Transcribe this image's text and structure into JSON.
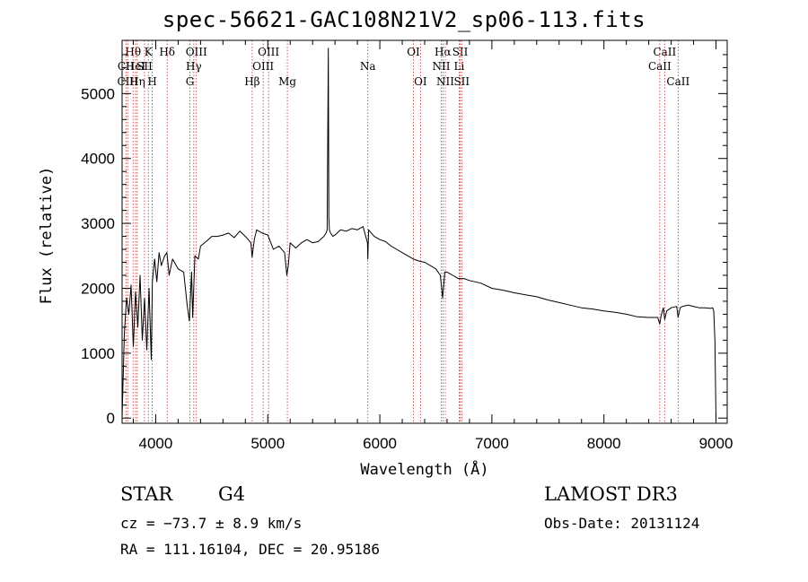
{
  "chart_data": {
    "type": "line",
    "title": "spec-56621-GAC108N21V2_sp06-113.fits",
    "xlabel": "Wavelength (Å)",
    "ylabel": "Flux (relative)",
    "xlim": [
      3700,
      9100
    ],
    "ylim": [
      -80,
      5820
    ],
    "xticks": [
      4000,
      5000,
      6000,
      7000,
      8000,
      9000
    ],
    "yticks": [
      0,
      1000,
      2000,
      3000,
      4000,
      5000
    ],
    "series": [
      {
        "name": "spectrum",
        "x": [
          3700,
          3720,
          3740,
          3760,
          3780,
          3800,
          3820,
          3840,
          3860,
          3880,
          3900,
          3920,
          3940,
          3960,
          3970,
          3990,
          4010,
          4030,
          4050,
          4080,
          4100,
          4120,
          4150,
          4200,
          4250,
          4280,
          4300,
          4320,
          4330,
          4350,
          4380,
          4400,
          4450,
          4500,
          4550,
          4600,
          4650,
          4700,
          4750,
          4800,
          4850,
          4860,
          4880,
          4900,
          4950,
          5000,
          5050,
          5100,
          5150,
          5170,
          5183,
          5200,
          5250,
          5300,
          5350,
          5400,
          5450,
          5500,
          5520,
          5530,
          5540,
          5545,
          5550,
          5560,
          5580,
          5600,
          5650,
          5700,
          5750,
          5800,
          5850,
          5890,
          5893,
          5900,
          5950,
          6000,
          6050,
          6100,
          6150,
          6200,
          6250,
          6300,
          6350,
          6400,
          6450,
          6500,
          6540,
          6560,
          6565,
          6580,
          6600,
          6650,
          6700,
          6750,
          6800,
          6900,
          7000,
          7100,
          7200,
          7300,
          7400,
          7500,
          7600,
          7700,
          7800,
          7900,
          8000,
          8100,
          8200,
          8300,
          8400,
          8480,
          8498,
          8510,
          8530,
          8542,
          8560,
          8600,
          8650,
          8662,
          8680,
          8700,
          8750,
          8800,
          8850,
          8900,
          8950,
          8970,
          8980,
          8990,
          9000
        ],
        "y": [
          0,
          1300,
          1850,
          1600,
          2050,
          1100,
          1950,
          1400,
          2200,
          1200,
          1850,
          1050,
          2000,
          900,
          2100,
          2450,
          2100,
          2550,
          2350,
          2500,
          2550,
          2200,
          2450,
          2300,
          2250,
          1750,
          1500,
          2250,
          1550,
          2500,
          2450,
          2650,
          2720,
          2800,
          2800,
          2820,
          2850,
          2780,
          2880,
          2800,
          2700,
          2480,
          2750,
          2900,
          2850,
          2820,
          2600,
          2650,
          2550,
          2200,
          2350,
          2700,
          2620,
          2700,
          2750,
          2700,
          2720,
          2800,
          2850,
          2900,
          5700,
          3100,
          2900,
          2850,
          2800,
          2820,
          2900,
          2880,
          2920,
          2900,
          2950,
          2700,
          2450,
          2900,
          2800,
          2750,
          2720,
          2650,
          2600,
          2550,
          2500,
          2450,
          2420,
          2400,
          2350,
          2300,
          2200,
          1850,
          1950,
          2250,
          2250,
          2200,
          2150,
          2150,
          2120,
          2080,
          2000,
          1970,
          1930,
          1900,
          1870,
          1820,
          1780,
          1740,
          1700,
          1680,
          1650,
          1630,
          1600,
          1560,
          1550,
          1550,
          1450,
          1580,
          1700,
          1520,
          1650,
          1700,
          1720,
          1550,
          1700,
          1720,
          1740,
          1720,
          1700,
          1700,
          1690,
          1700,
          1650,
          1200,
          0
        ]
      }
    ],
    "lines": [
      {
        "label": "Hθ",
        "x": 3798,
        "row": 1
      },
      {
        "label": "CII",
        "x": 3734,
        "row": 2
      },
      {
        "label": "CIII",
        "x": 3750,
        "row": 3
      },
      {
        "label": "HeI",
        "x": 3820,
        "row": 2
      },
      {
        "label": "Hη",
        "x": 3835,
        "row": 3
      },
      {
        "label": "K",
        "x": 3934,
        "row": 1
      },
      {
        "label": "SII",
        "x": 3900,
        "row": 2
      },
      {
        "label": "H",
        "x": 3969,
        "row": 3
      },
      {
        "label": "Hδ",
        "x": 4102,
        "row": 1
      },
      {
        "label": "OIII",
        "x": 4363,
        "row": 1
      },
      {
        "label": "Hγ",
        "x": 4340,
        "row": 2
      },
      {
        "label": "G",
        "x": 4305,
        "row": 3
      },
      {
        "label": "Hβ",
        "x": 4861,
        "row": 3
      },
      {
        "label": "OIII",
        "x": 5007,
        "row": 1
      },
      {
        "label": "OIII",
        "x": 4959,
        "row": 2
      },
      {
        "label": "Mg",
        "x": 5175,
        "row": 3
      },
      {
        "label": "Na",
        "x": 5893,
        "row": 2
      },
      {
        "label": "OI",
        "x": 6300,
        "row": 1
      },
      {
        "label": "OI",
        "x": 6363,
        "row": 3
      },
      {
        "label": "Hα",
        "x": 6563,
        "row": 1
      },
      {
        "label": "NII",
        "x": 6548,
        "row": 2
      },
      {
        "label": "NII",
        "x": 6584,
        "row": 3
      },
      {
        "label": "SII",
        "x": 6717,
        "row": 1
      },
      {
        "label": "Li",
        "x": 6708,
        "row": 2
      },
      {
        "label": "SII",
        "x": 6731,
        "row": 3
      },
      {
        "label": "CaII",
        "x": 8542,
        "row": 1
      },
      {
        "label": "CaII",
        "x": 8498,
        "row": 2
      },
      {
        "label": "CaII",
        "x": 8662,
        "row": 3
      }
    ]
  },
  "info": {
    "object_class": "STAR",
    "subclass": "G4",
    "survey": "LAMOST DR3",
    "redshift": "cz = −73.7 ± 8.9 km/s",
    "obs_date": "Obs-Date: 20131124",
    "coords": "RA = 111.16104, DEC =  20.95186"
  }
}
